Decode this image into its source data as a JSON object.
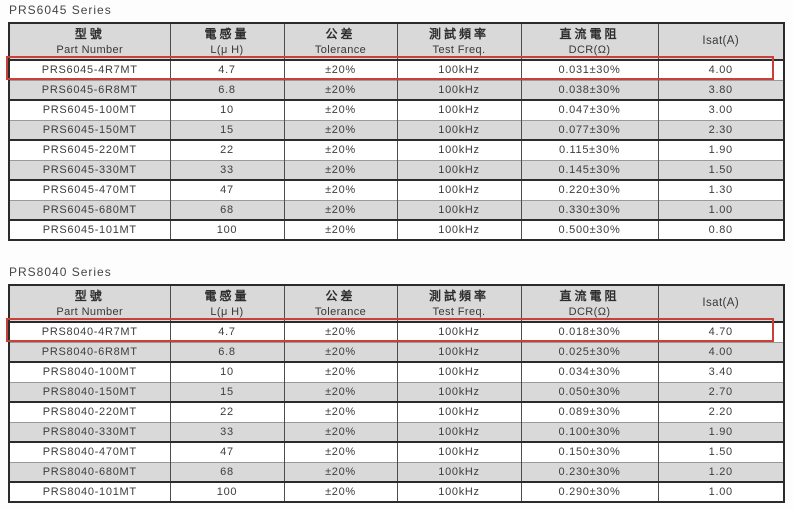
{
  "colors": {
    "header_bg": "#d9d9d9",
    "row_bg": "#ffffff",
    "row_alt_bg": "#d9d9d9",
    "border_dark": "#2b2b2b",
    "border_light": "#9a9a9a",
    "text": "#3d3d3d",
    "highlight_red": "#c94039"
  },
  "tables": [
    {
      "title": "PRS6045 Series",
      "columns": [
        {
          "zh": "型號",
          "en": "Part Number"
        },
        {
          "zh": "電感量",
          "en": "L(μ H)"
        },
        {
          "zh": "公差",
          "en": "Tolerance"
        },
        {
          "zh": "測試頻率",
          "en": "Test Freq."
        },
        {
          "zh": "直流電阻",
          "en": "DCR(Ω)"
        },
        {
          "zh": "",
          "en": "Isat(A)"
        }
      ],
      "highlighted_row": 0,
      "rows": [
        [
          "PRS6045-4R7MT",
          "4.7",
          "±20%",
          "100kHz",
          "0.031±30%",
          "4.00"
        ],
        [
          "PRS6045-6R8MT",
          "6.8",
          "±20%",
          "100kHz",
          "0.038±30%",
          "3.80"
        ],
        [
          "PRS6045-100MT",
          "10",
          "±20%",
          "100kHz",
          "0.047±30%",
          "3.00"
        ],
        [
          "PRS6045-150MT",
          "15",
          "±20%",
          "100kHz",
          "0.077±30%",
          "2.30"
        ],
        [
          "PRS6045-220MT",
          "22",
          "±20%",
          "100kHz",
          "0.115±30%",
          "1.90"
        ],
        [
          "PRS6045-330MT",
          "33",
          "±20%",
          "100kHz",
          "0.145±30%",
          "1.50"
        ],
        [
          "PRS6045-470MT",
          "47",
          "±20%",
          "100kHz",
          "0.220±30%",
          "1.30"
        ],
        [
          "PRS6045-680MT",
          "68",
          "±20%",
          "100kHz",
          "0.330±30%",
          "1.00"
        ],
        [
          "PRS6045-101MT",
          "100",
          "±20%",
          "100kHz",
          "0.500±30%",
          "0.80"
        ]
      ]
    },
    {
      "title": "PRS8040 Series",
      "columns": [
        {
          "zh": "型號",
          "en": "Part Number"
        },
        {
          "zh": "電感量",
          "en": "L(μ H)"
        },
        {
          "zh": "公差",
          "en": "Tolerance"
        },
        {
          "zh": "測試頻率",
          "en": "Test Freq."
        },
        {
          "zh": "直流電阻",
          "en": "DCR(Ω)"
        },
        {
          "zh": "",
          "en": "Isat(A)"
        }
      ],
      "highlighted_row": 0,
      "rows": [
        [
          "PRS8040-4R7MT",
          "4.7",
          "±20%",
          "100kHz",
          "0.018±30%",
          "4.70"
        ],
        [
          "PRS8040-6R8MT",
          "6.8",
          "±20%",
          "100kHz",
          "0.025±30%",
          "4.00"
        ],
        [
          "PRS8040-100MT",
          "10",
          "±20%",
          "100kHz",
          "0.034±30%",
          "3.40"
        ],
        [
          "PRS8040-150MT",
          "15",
          "±20%",
          "100kHz",
          "0.050±30%",
          "2.70"
        ],
        [
          "PRS8040-220MT",
          "22",
          "±20%",
          "100kHz",
          "0.089±30%",
          "2.20"
        ],
        [
          "PRS8040-330MT",
          "33",
          "±20%",
          "100kHz",
          "0.100±30%",
          "1.90"
        ],
        [
          "PRS8040-470MT",
          "47",
          "±20%",
          "100kHz",
          "0.150±30%",
          "1.50"
        ],
        [
          "PRS8040-680MT",
          "68",
          "±20%",
          "100kHz",
          "0.230±30%",
          "1.20"
        ],
        [
          "PRS8040-101MT",
          "100",
          "±20%",
          "100kHz",
          "0.290±30%",
          "1.00"
        ]
      ]
    }
  ]
}
